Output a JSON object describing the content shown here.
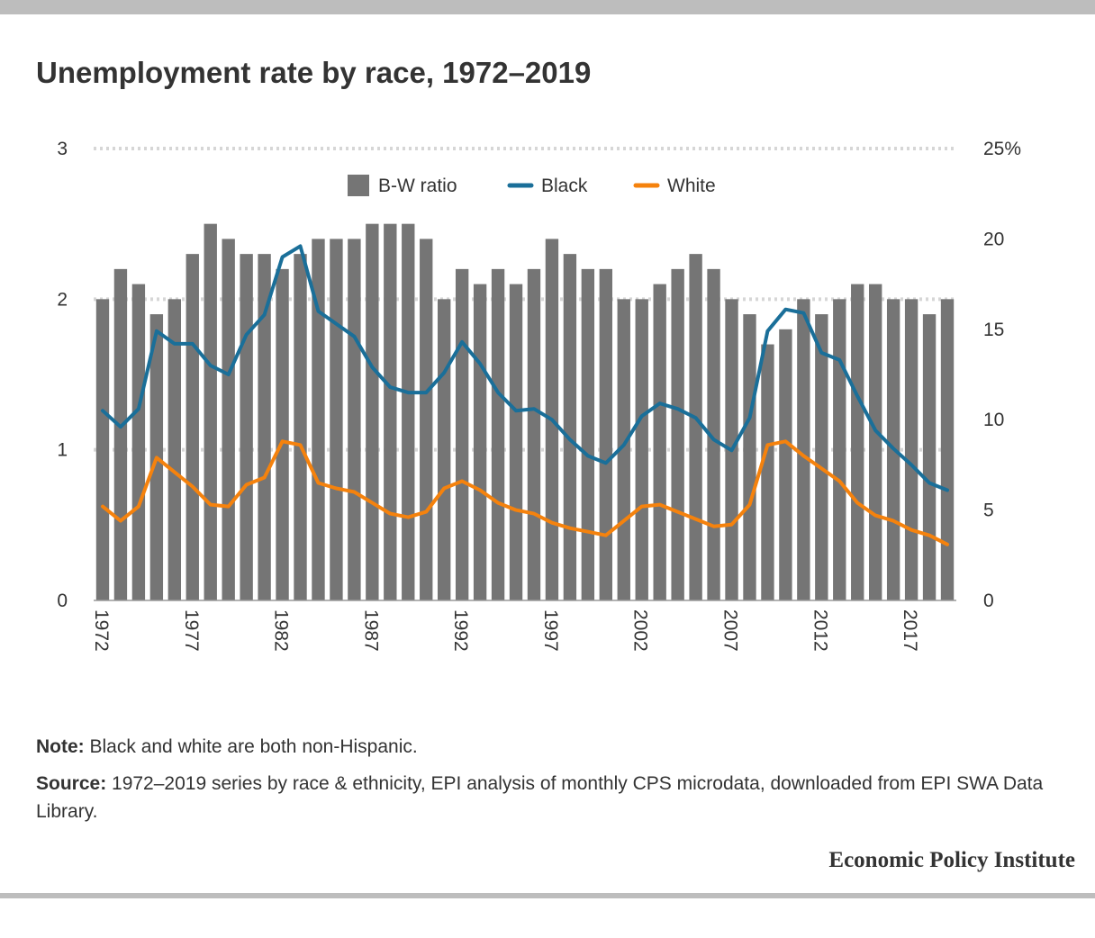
{
  "title": "Unemployment rate by race, 1972–2019",
  "chart_data": {
    "type": "bar",
    "x": [
      1972,
      1973,
      1974,
      1975,
      1976,
      1977,
      1978,
      1979,
      1980,
      1981,
      1982,
      1983,
      1984,
      1985,
      1986,
      1987,
      1988,
      1989,
      1990,
      1991,
      1992,
      1993,
      1994,
      1995,
      1996,
      1997,
      1998,
      1999,
      2000,
      2001,
      2002,
      2003,
      2004,
      2005,
      2006,
      2007,
      2008,
      2009,
      2010,
      2011,
      2012,
      2013,
      2014,
      2015,
      2016,
      2017,
      2018,
      2019
    ],
    "x_tick_labels": [
      "1972",
      "1977",
      "1982",
      "1987",
      "1992",
      "1997",
      "2002",
      "2007",
      "2012",
      "2017"
    ],
    "x_tick_years": [
      1972,
      1977,
      1982,
      1987,
      1992,
      1997,
      2002,
      2007,
      2012,
      2017
    ],
    "series": [
      {
        "name": "B-W ratio",
        "type": "bar",
        "axis": "left",
        "color": "#757575",
        "values": [
          2.0,
          2.2,
          2.1,
          1.9,
          2.0,
          2.3,
          2.5,
          2.4,
          2.3,
          2.3,
          2.2,
          2.3,
          2.4,
          2.4,
          2.4,
          2.5,
          2.5,
          2.5,
          2.4,
          2.0,
          2.2,
          2.1,
          2.2,
          2.1,
          2.2,
          2.4,
          2.3,
          2.2,
          2.2,
          2.0,
          2.0,
          2.1,
          2.2,
          2.3,
          2.2,
          2.0,
          1.9,
          1.7,
          1.8,
          2.0,
          1.9,
          2.0,
          2.1,
          2.1,
          2.0,
          2.0,
          1.9,
          2.0
        ]
      },
      {
        "name": "Black",
        "type": "line",
        "axis": "right",
        "color": "#1a6f99",
        "values": [
          10.5,
          9.6,
          10.6,
          14.9,
          14.2,
          14.2,
          13.0,
          12.5,
          14.7,
          15.8,
          19.0,
          19.6,
          16.0,
          15.3,
          14.6,
          12.9,
          11.8,
          11.5,
          11.5,
          12.6,
          14.3,
          13.1,
          11.5,
          10.5,
          10.6,
          10.0,
          8.9,
          8.0,
          7.6,
          8.6,
          10.2,
          10.9,
          10.6,
          10.1,
          8.9,
          8.3,
          10.1,
          14.9,
          16.1,
          15.9,
          13.7,
          13.3,
          11.3,
          9.4,
          8.4,
          7.5,
          6.5,
          6.1
        ]
      },
      {
        "name": "White",
        "type": "line",
        "axis": "right",
        "color": "#f5820d",
        "values": [
          5.2,
          4.4,
          5.2,
          7.9,
          7.1,
          6.3,
          5.3,
          5.2,
          6.4,
          6.8,
          8.8,
          8.6,
          6.5,
          6.2,
          6.0,
          5.4,
          4.8,
          4.6,
          4.9,
          6.2,
          6.6,
          6.1,
          5.4,
          5.0,
          4.8,
          4.3,
          4.0,
          3.8,
          3.6,
          4.4,
          5.2,
          5.3,
          4.9,
          4.5,
          4.1,
          4.2,
          5.3,
          8.6,
          8.8,
          8.0,
          7.3,
          6.6,
          5.4,
          4.7,
          4.4,
          3.9,
          3.6,
          3.1
        ]
      }
    ],
    "y_left": {
      "ticks": [
        "0",
        "1",
        "2",
        "3"
      ],
      "ylim": [
        0,
        3
      ]
    },
    "y_right": {
      "ticks": [
        "0",
        "5",
        "10",
        "15",
        "20",
        "25%"
      ],
      "ylim": [
        0,
        25
      ]
    },
    "grid": true,
    "legend": [
      "B-W ratio",
      "Black",
      "White"
    ],
    "legend_position": "top-center"
  },
  "notes": {
    "note_label": "Note:",
    "note_text": " Black and white are both non-Hispanic.",
    "source_label": "Source:",
    "source_text": " 1972–2019 series by race & ethnicity, EPI analysis of monthly CPS microdata, downloaded from EPI SWA Data Library."
  },
  "brand": "Economic Policy Institute"
}
